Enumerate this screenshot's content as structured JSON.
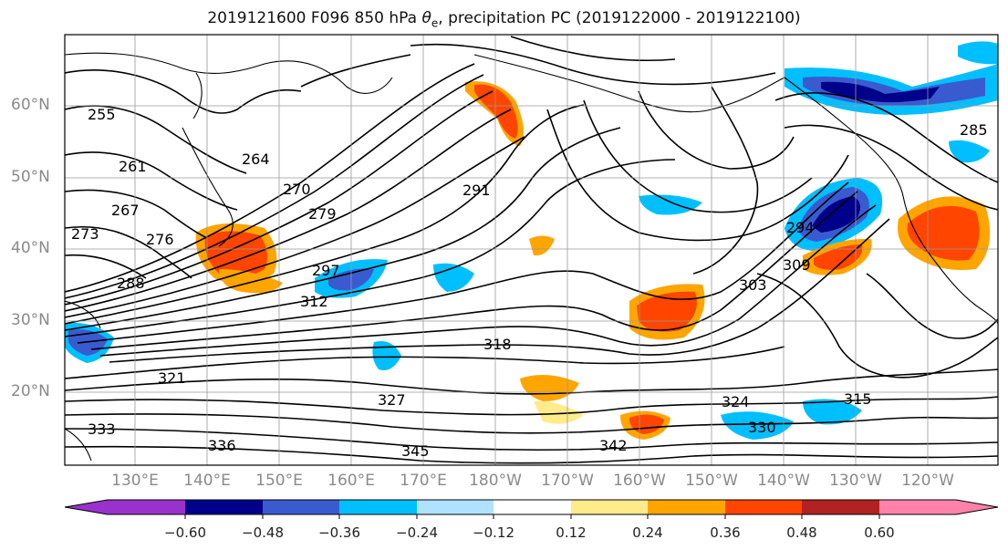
{
  "title_prefix": "2019121600 F096 850 hPa ",
  "title_symbol": "θ",
  "title_subscript": "e",
  "title_suffix": ", precipitation PC (2019122000 - 2019122100)",
  "lat_ticks": [
    "60°N",
    "50°N",
    "40°N",
    "30°N",
    "20°N"
  ],
  "lon_ticks": [
    "130°E",
    "140°E",
    "150°E",
    "160°E",
    "170°E",
    "180°W",
    "170°W",
    "160°W",
    "150°W",
    "140°W",
    "130°W",
    "120°W"
  ],
  "colorbar": {
    "ticks": [
      "−0.60",
      "−0.48",
      "−0.36",
      "−0.24",
      "−0.12",
      "0.12",
      "0.24",
      "0.36",
      "0.48",
      "0.60"
    ],
    "colors": [
      "#9932cc",
      "#00008b",
      "#3a5bd0",
      "#00bfff",
      "#b0e2ff",
      "#ffffff",
      "#ffeb8a",
      "#ffa500",
      "#ff4500",
      "#b22222",
      "#ff82ab"
    ]
  },
  "contour_labels": [
    "255",
    "261",
    "264",
    "267",
    "270",
    "273",
    "276",
    "279",
    "285",
    "288",
    "291",
    "294",
    "297",
    "303",
    "309",
    "312",
    "315",
    "318",
    "321",
    "324",
    "327",
    "330",
    "333",
    "336",
    "342",
    "345"
  ],
  "precip_colors": {
    "neg_strong": "#00008b",
    "neg_mid": "#3a5bd0",
    "neg_weak": "#00bfff",
    "pos_weak": "#ffa500",
    "pos_strong": "#ff4500"
  }
}
